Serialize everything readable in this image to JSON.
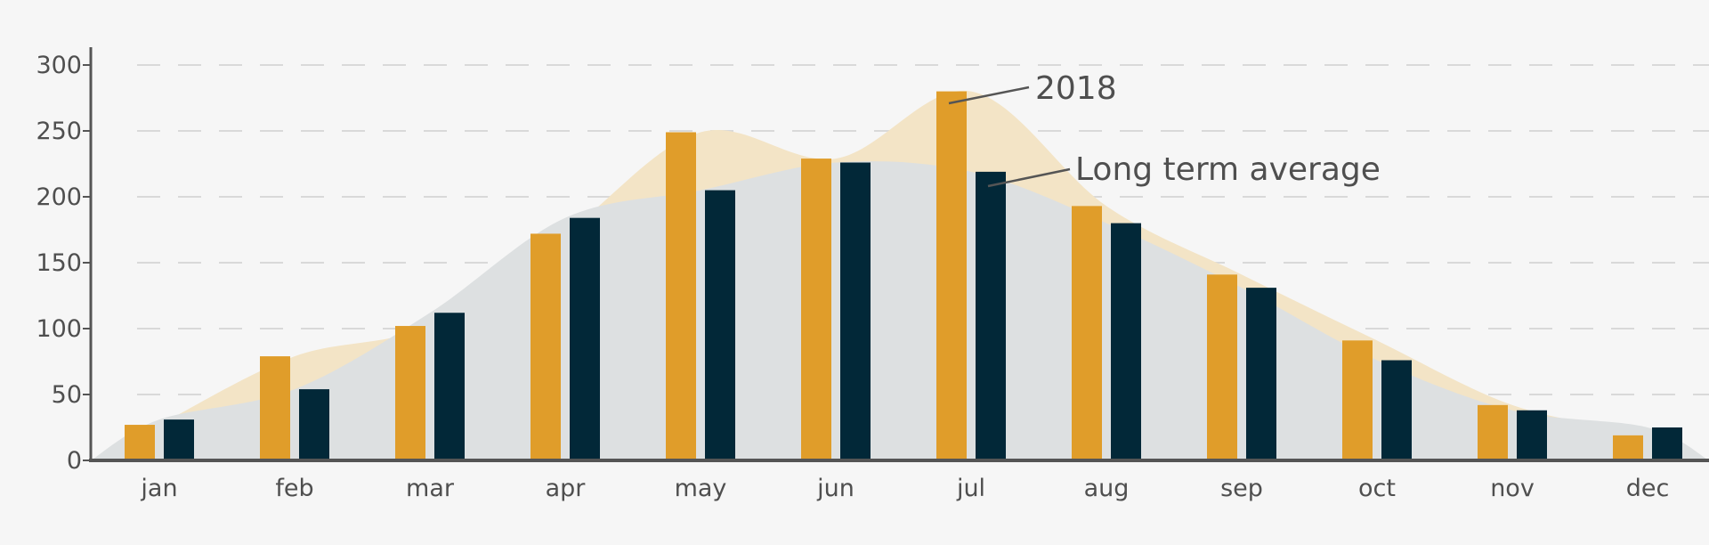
{
  "chart_data": {
    "type": "bar",
    "title": "",
    "xlabel": "",
    "ylabel": "",
    "categories": [
      "jan",
      "feb",
      "mar",
      "apr",
      "may",
      "jun",
      "jul",
      "aug",
      "sep",
      "oct",
      "nov",
      "dec"
    ],
    "ylim": [
      0,
      300
    ],
    "yticks": [
      "0",
      "50",
      "100",
      "150",
      "200",
      "250",
      "300"
    ],
    "grid": "horizontal dashed",
    "series": [
      {
        "name": "2018",
        "color": "#e09d2a",
        "values": [
          27,
          79,
          102,
          172,
          249,
          229,
          280,
          193,
          141,
          91,
          42,
          19
        ]
      },
      {
        "name": "Long term average",
        "color": "#022838",
        "values": [
          31,
          54,
          112,
          184,
          205,
          226,
          219,
          180,
          131,
          76,
          38,
          25
        ]
      }
    ],
    "background_areas": [
      {
        "series": "2018",
        "color": "#f3e4c6"
      },
      {
        "series": "Long term average",
        "color": "#dde0e1"
      }
    ],
    "annotations": [
      {
        "text": "2018",
        "points_to": {
          "category": "jul",
          "series": "2018"
        }
      },
      {
        "text": "Long term average",
        "points_to": {
          "category": "jul",
          "series": "Long term average"
        }
      }
    ]
  }
}
